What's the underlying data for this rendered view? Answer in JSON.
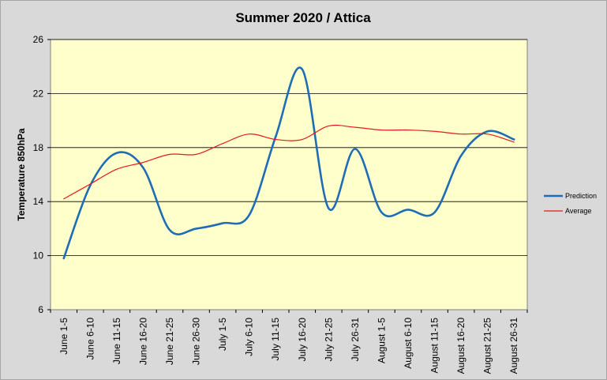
{
  "chart_data": {
    "type": "line",
    "title": "Summer 2020 / Attica",
    "xlabel": "",
    "ylabel": "Temperature 850hPa",
    "ylim": [
      6,
      26
    ],
    "yticks": [
      6,
      10,
      14,
      18,
      22,
      26
    ],
    "grid": true,
    "legend_position": "right",
    "plot_background": "#ffffcc",
    "categories": [
      "June 1-5",
      "June 6-10",
      "June 11-15",
      "June 16-20",
      "June 21-25",
      "June 26-30",
      "July 1-5",
      "July 6-10",
      "July 11-15",
      "July 16-20",
      "July 21-25",
      "July 26-31",
      "August 1-5",
      "August 6-10",
      "August 11-15",
      "August 16-20",
      "August 21-25",
      "August 26-31"
    ],
    "series": [
      {
        "name": "Prediction",
        "color": "#1f6db5",
        "values": [
          9.8,
          15.2,
          17.6,
          16.5,
          11.9,
          12.0,
          12.4,
          13.0,
          18.8,
          23.8,
          13.5,
          17.9,
          13.2,
          13.4,
          13.2,
          17.4,
          19.2,
          18.6
        ]
      },
      {
        "name": "Average",
        "color": "#e31a1c",
        "values": [
          14.2,
          15.3,
          16.4,
          16.9,
          17.5,
          17.5,
          18.3,
          19.0,
          18.6,
          18.6,
          19.6,
          19.5,
          19.3,
          19.3,
          19.2,
          19.0,
          19.0,
          18.4
        ]
      }
    ]
  }
}
